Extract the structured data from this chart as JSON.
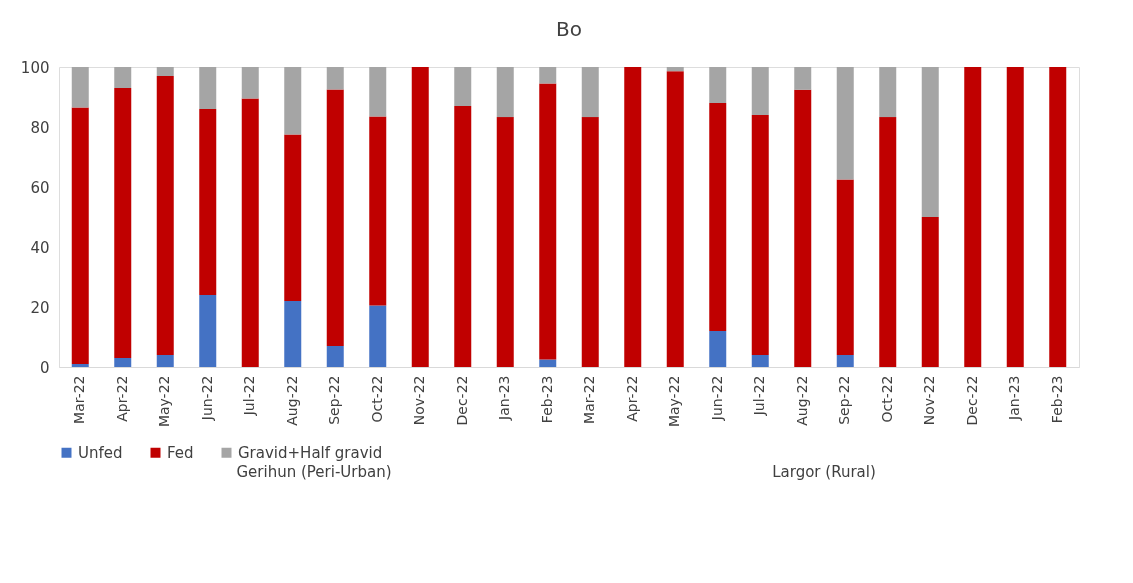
{
  "chart_data": {
    "type": "bar",
    "title": "Bo",
    "stacked": true,
    "categories": [
      "Mar-22",
      "Apr-22",
      "May-22",
      "Jun-22",
      "Jul-22",
      "Aug-22",
      "Sep-22",
      "Oct-22",
      "Nov-22",
      "Dec-22",
      "Jan-23",
      "Feb-23",
      "Mar-22",
      "Apr-22",
      "May-22",
      "Jun-22",
      "Jul-22",
      "Aug-22",
      "Sep-22",
      "Oct-22",
      "Nov-22",
      "Dec-22",
      "Jan-23",
      "Feb-23"
    ],
    "series": [
      {
        "name": "Unfed",
        "color": "#4472c4",
        "values": [
          1,
          3,
          4,
          24,
          0,
          22,
          7,
          20.5,
          0,
          0,
          0,
          2.5,
          0,
          0,
          0,
          12,
          4,
          0,
          4,
          0,
          0,
          0,
          0,
          0
        ]
      },
      {
        "name": "Fed",
        "color": "#c00000",
        "values": [
          85.5,
          90,
          93,
          62,
          89.5,
          55.5,
          85.5,
          63,
          100,
          87,
          83.3,
          92,
          83.3,
          100,
          98.6,
          76,
          80,
          92.4,
          58.5,
          83.3,
          50,
          100,
          100,
          100
        ]
      },
      {
        "name": "Gravid+Half gravid",
        "color": "#a5a5a5",
        "values": [
          13.5,
          7,
          3,
          14,
          10.5,
          22.5,
          7.5,
          16.5,
          0,
          13,
          16.7,
          5.5,
          16.7,
          0,
          1.4,
          12,
          16,
          7.6,
          37.5,
          16.7,
          50,
          0,
          0,
          0
        ]
      }
    ],
    "ylim": [
      0,
      100
    ],
    "yticks": [
      0,
      20,
      40,
      60,
      80,
      100
    ],
    "grid": false,
    "legend": "bottom",
    "annotations": [
      "Gerihun (Peri-Urban)",
      "Largor (Rural)"
    ]
  }
}
